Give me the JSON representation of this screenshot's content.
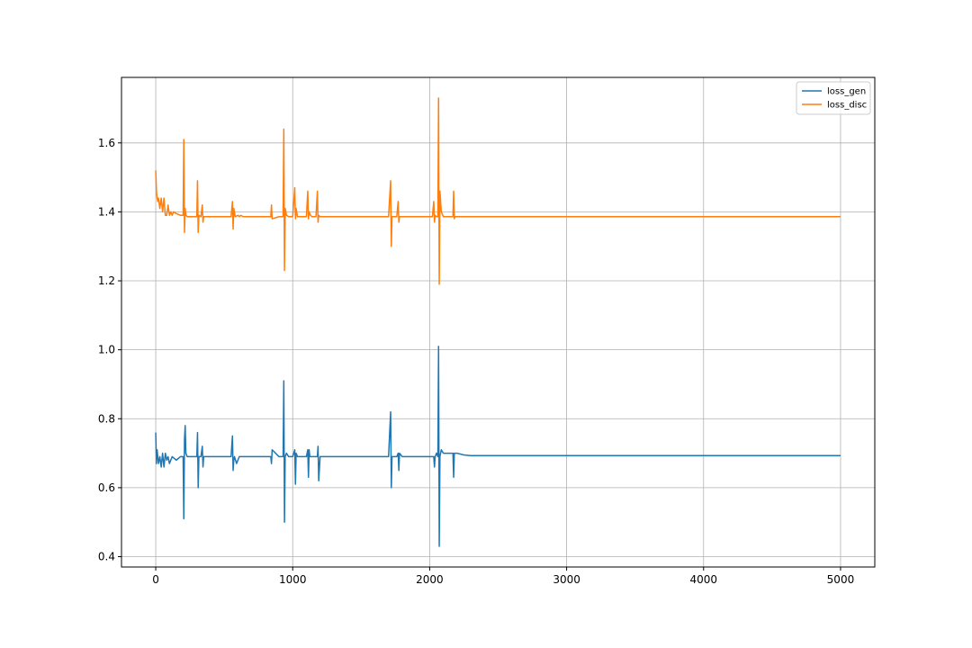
{
  "chart_data": {
    "type": "line",
    "title": "",
    "xlabel": "",
    "ylabel": "",
    "xlim": [
      -250,
      5250
    ],
    "ylim": [
      0.37,
      1.79
    ],
    "xticks": [
      0,
      1000,
      2000,
      3000,
      4000,
      5000
    ],
    "xtick_labels": [
      "0",
      "1000",
      "2000",
      "3000",
      "4000",
      "5000"
    ],
    "yticks": [
      0.4,
      0.6,
      0.8,
      1.0,
      1.2,
      1.4,
      1.6
    ],
    "ytick_labels": [
      "0.4",
      "0.6",
      "0.8",
      "1.0",
      "1.2",
      "1.4",
      "1.6"
    ],
    "grid": true,
    "legend": "top-right",
    "series": [
      {
        "name": "loss_gen",
        "color": "#1f77b4",
        "x": [
          0,
          5,
          10,
          20,
          30,
          40,
          50,
          60,
          70,
          80,
          90,
          100,
          120,
          150,
          180,
          200,
          205,
          210,
          215,
          220,
          230,
          260,
          300,
          305,
          310,
          315,
          330,
          340,
          345,
          350,
          400,
          550,
          560,
          565,
          570,
          575,
          590,
          610,
          640,
          700,
          800,
          840,
          845,
          850,
          900,
          930,
          935,
          940,
          945,
          955,
          970,
          1000,
          1015,
          1020,
          1025,
          1035,
          1060,
          1100,
          1110,
          1115,
          1120,
          1125,
          1140,
          1170,
          1180,
          1185,
          1190,
          1200,
          1300,
          1500,
          1700,
          1715,
          1720,
          1725,
          1735,
          1760,
          1770,
          1775,
          1780,
          1800,
          1900,
          2000,
          2020,
          2030,
          2035,
          2040,
          2050,
          2060,
          2065,
          2070,
          2075,
          2085,
          2100,
          2150,
          2170,
          2175,
          2180,
          2185,
          2200,
          2250,
          2300,
          2500,
          3000,
          4000,
          5000
        ],
        "y": [
          0.76,
          0.67,
          0.71,
          0.67,
          0.69,
          0.66,
          0.7,
          0.66,
          0.7,
          0.68,
          0.69,
          0.67,
          0.69,
          0.68,
          0.69,
          0.69,
          0.51,
          0.74,
          0.78,
          0.7,
          0.69,
          0.69,
          0.69,
          0.76,
          0.6,
          0.69,
          0.69,
          0.72,
          0.66,
          0.69,
          0.69,
          0.69,
          0.75,
          0.65,
          0.68,
          0.69,
          0.67,
          0.69,
          0.69,
          0.69,
          0.69,
          0.69,
          0.67,
          0.71,
          0.69,
          0.69,
          0.91,
          0.5,
          0.69,
          0.7,
          0.69,
          0.69,
          0.71,
          0.61,
          0.7,
          0.69,
          0.69,
          0.69,
          0.71,
          0.63,
          0.71,
          0.69,
          0.69,
          0.69,
          0.69,
          0.72,
          0.62,
          0.69,
          0.69,
          0.69,
          0.69,
          0.82,
          0.6,
          0.69,
          0.69,
          0.69,
          0.7,
          0.65,
          0.7,
          0.69,
          0.69,
          0.69,
          0.69,
          0.69,
          0.66,
          0.69,
          0.7,
          0.69,
          1.01,
          0.43,
          0.69,
          0.71,
          0.7,
          0.7,
          0.7,
          0.63,
          0.7,
          0.7,
          0.7,
          0.695,
          0.693,
          0.693,
          0.693,
          0.693,
          0.693
        ]
      },
      {
        "name": "loss_disc",
        "color": "#ff7f0e",
        "x": [
          0,
          5,
          10,
          15,
          20,
          30,
          40,
          50,
          60,
          70,
          80,
          90,
          100,
          110,
          120,
          130,
          150,
          180,
          200,
          205,
          210,
          215,
          220,
          230,
          260,
          300,
          305,
          310,
          315,
          330,
          340,
          345,
          350,
          400,
          550,
          560,
          565,
          570,
          580,
          600,
          610,
          620,
          640,
          700,
          800,
          840,
          845,
          850,
          900,
          930,
          935,
          940,
          945,
          955,
          970,
          1000,
          1015,
          1020,
          1025,
          1035,
          1060,
          1100,
          1110,
          1115,
          1120,
          1130,
          1140,
          1170,
          1180,
          1185,
          1190,
          1200,
          1300,
          1500,
          1700,
          1715,
          1720,
          1725,
          1735,
          1760,
          1770,
          1775,
          1780,
          1800,
          1900,
          2000,
          2020,
          2030,
          2035,
          2040,
          2050,
          2060,
          2065,
          2070,
          2075,
          2085,
          2100,
          2150,
          2170,
          2175,
          2180,
          2185,
          2200,
          2250,
          2300,
          2500,
          3000,
          4000,
          5000
        ],
        "y": [
          1.52,
          1.46,
          1.44,
          1.43,
          1.44,
          1.41,
          1.44,
          1.4,
          1.44,
          1.39,
          1.39,
          1.42,
          1.39,
          1.4,
          1.39,
          1.4,
          1.395,
          1.39,
          1.39,
          1.61,
          1.34,
          1.41,
          1.39,
          1.386,
          1.386,
          1.386,
          1.49,
          1.34,
          1.39,
          1.386,
          1.42,
          1.37,
          1.386,
          1.386,
          1.386,
          1.43,
          1.35,
          1.41,
          1.386,
          1.39,
          1.386,
          1.39,
          1.386,
          1.386,
          1.386,
          1.386,
          1.42,
          1.38,
          1.386,
          1.386,
          1.64,
          1.23,
          1.41,
          1.39,
          1.386,
          1.386,
          1.47,
          1.38,
          1.41,
          1.386,
          1.386,
          1.386,
          1.46,
          1.38,
          1.4,
          1.39,
          1.386,
          1.386,
          1.46,
          1.37,
          1.39,
          1.386,
          1.386,
          1.386,
          1.386,
          1.49,
          1.3,
          1.386,
          1.386,
          1.386,
          1.43,
          1.37,
          1.386,
          1.386,
          1.386,
          1.386,
          1.386,
          1.43,
          1.37,
          1.39,
          1.386,
          1.386,
          1.73,
          1.19,
          1.46,
          1.4,
          1.386,
          1.386,
          1.386,
          1.46,
          1.38,
          1.386,
          1.386,
          1.386,
          1.386,
          1.386,
          1.386,
          1.386,
          1.386
        ]
      }
    ]
  }
}
